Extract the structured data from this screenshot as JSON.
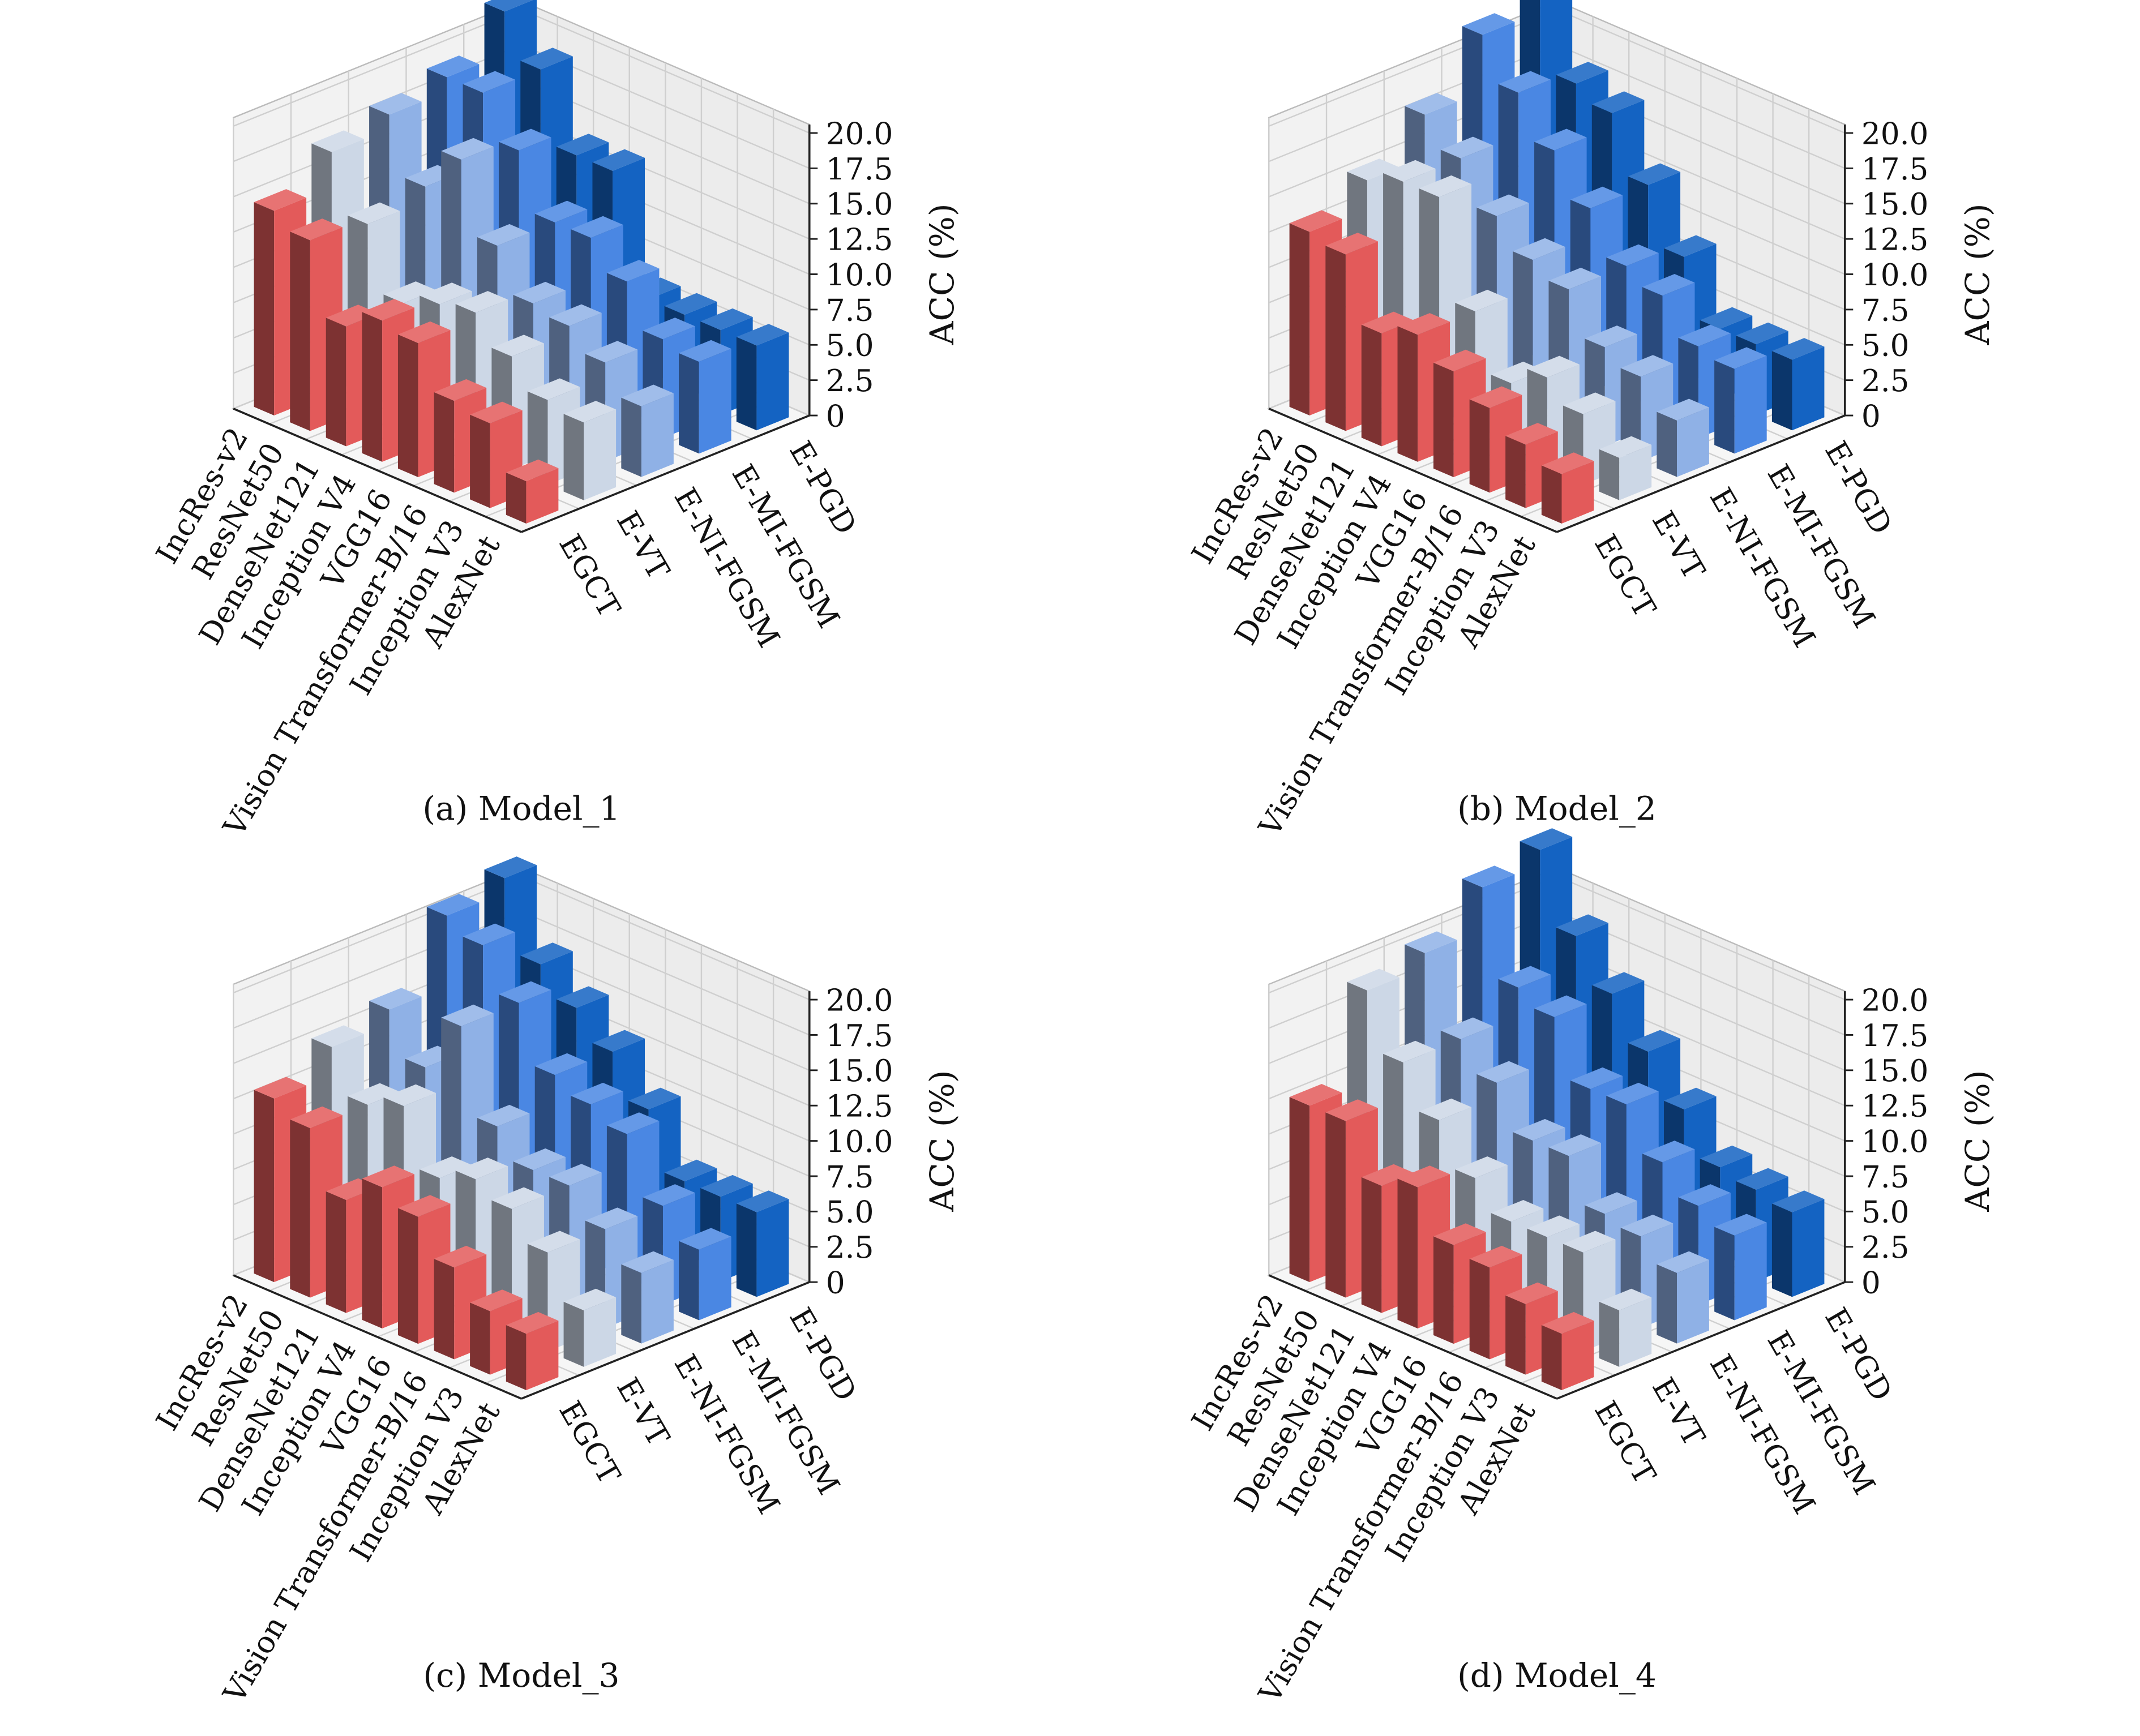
{
  "chart_data": [
    {
      "type": "bar",
      "title": "(a) Model_1",
      "zlabel": "ACC (%)",
      "zlim": [
        0,
        20
      ],
      "zticks": [
        "0",
        "2.5",
        "5.0",
        "7.5",
        "10.0",
        "12.5",
        "15.0",
        "17.5",
        "20.0"
      ],
      "grid": true,
      "categories": [
        "IncRes-v2",
        "ResNet50",
        "DenseNet121",
        "Inception V4",
        "VGG16",
        "Vision Transformer-B/16",
        "Inception V3",
        "AlexNet"
      ],
      "series": [
        {
          "name": "EGCT",
          "values": [
            14.5,
            13.5,
            8.5,
            10,
            9.5,
            6.5,
            6,
            3
          ]
        },
        {
          "name": "E-VT",
          "values": [
            17,
            13,
            8.5,
            9.5,
            10,
            8,
            6,
            5.5
          ]
        },
        {
          "name": "E-NI-FGSM",
          "values": [
            18,
            14,
            17,
            12,
            9,
            8.5,
            7,
            5
          ]
        },
        {
          "name": "E-MI-FGSM",
          "values": [
            19,
            19,
            16,
            12,
            12,
            10,
            7,
            6.5
          ]
        },
        {
          "name": "E-PGD",
          "values": [
            22,
            19,
            14,
            14,
            6,
            6,
            6,
            6
          ]
        }
      ]
    },
    {
      "type": "bar",
      "title": "(b) Model_2",
      "zlabel": "ACC (%)",
      "zlim": [
        0,
        20
      ],
      "zticks": [
        "0",
        "2.5",
        "5.0",
        "7.5",
        "10.0",
        "12.5",
        "15.0",
        "17.5",
        "20.0"
      ],
      "grid": true,
      "categories": [
        "IncRes-v2",
        "ResNet50",
        "DenseNet121",
        "Inception V4",
        "VGG16",
        "Vision Transformer-B/16",
        "Inception V3",
        "AlexNet"
      ],
      "series": [
        {
          "name": "EGCT",
          "values": [
            13,
            12.5,
            8,
            9,
            7.5,
            6,
            4.5,
            3.5
          ]
        },
        {
          "name": "E-VT",
          "values": [
            15,
            16,
            16,
            9,
            5,
            6.5,
            5,
            3
          ]
        },
        {
          "name": "E-NI-FGSM",
          "values": [
            18,
            16,
            13,
            11,
            10,
            7,
            6,
            4
          ]
        },
        {
          "name": "E-MI-FGSM",
          "values": [
            22,
            19,
            16,
            13,
            10,
            9,
            6.5,
            6
          ]
        },
        {
          "name": "E-PGD",
          "values": [
            24,
            18,
            17,
            13,
            9,
            5,
            5,
            5
          ]
        }
      ]
    },
    {
      "type": "bar",
      "title": "(c) Model_3",
      "zlabel": "ACC (%)",
      "zlim": [
        0,
        20
      ],
      "zticks": [
        "0",
        "2.5",
        "5.0",
        "7.5",
        "10.0",
        "12.5",
        "15.0",
        "17.5",
        "20.0"
      ],
      "grid": true,
      "categories": [
        "IncRes-v2",
        "ResNet50",
        "DenseNet121",
        "Inception V4",
        "VGG16",
        "Vision Transformer-B/16",
        "Inception V3",
        "AlexNet"
      ],
      "series": [
        {
          "name": "EGCT",
          "values": [
            13,
            12,
            8,
            10,
            9,
            6.5,
            4.5,
            4
          ]
        },
        {
          "name": "E-VT",
          "values": [
            15,
            12,
            13,
            9,
            10,
            9,
            7,
            4
          ]
        },
        {
          "name": "E-NI-FGSM",
          "values": [
            16,
            13,
            17,
            11,
            9,
            9,
            7,
            5
          ]
        },
        {
          "name": "E-MI-FGSM",
          "values": [
            21,
            20,
            17,
            13,
            12,
            11,
            7,
            5
          ]
        },
        {
          "name": "E-PGD",
          "values": [
            22,
            17,
            15,
            13,
            10,
            6,
            6,
            6
          ]
        }
      ]
    },
    {
      "type": "bar",
      "title": "(d) Model_4",
      "zlabel": "ACC (%)",
      "zlim": [
        0,
        20
      ],
      "zticks": [
        "0",
        "2.5",
        "5.0",
        "7.5",
        "10.0",
        "12.5",
        "15.0",
        "17.5",
        "20.0"
      ],
      "grid": true,
      "categories": [
        "IncRes-v2",
        "ResNet50",
        "DenseNet121",
        "Inception V4",
        "VGG16",
        "Vision Transformer-B/16",
        "Inception V3",
        "AlexNet"
      ],
      "series": [
        {
          "name": "EGCT",
          "values": [
            12.5,
            12.5,
            9,
            10,
            7,
            6.5,
            5,
            4
          ]
        },
        {
          "name": "E-VT",
          "values": [
            19,
            15,
            12,
            9,
            7,
            7,
            7,
            4
          ]
        },
        {
          "name": "E-NI-FGSM",
          "values": [
            20,
            15,
            13,
            10,
            10,
            7,
            6.5,
            5
          ]
        },
        {
          "name": "E-MI-FGSM",
          "values": [
            23,
            17,
            16,
            12,
            12,
            9,
            7,
            6
          ]
        },
        {
          "name": "E-PGD",
          "values": [
            24,
            19,
            16,
            13,
            10,
            7,
            6.5,
            6
          ]
        }
      ]
    }
  ],
  "colors": {
    "EGCT": "#e35a5a",
    "E-VT": "#ccd7e6",
    "E-NI-FGSM": "#8fb1e6",
    "E-MI-FGSM": "#4a87e3",
    "E-PGD": "#1463c2"
  }
}
